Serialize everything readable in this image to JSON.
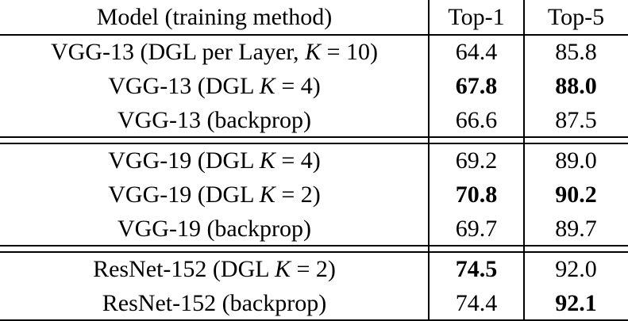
{
  "table": {
    "header": [
      "Model (training method)",
      "Top-1",
      "Top-5"
    ],
    "groups": [
      {
        "rows": [
          {
            "model": [
              "VGG-13 (DGL per Layer, ",
              "K",
              " = 10)"
            ],
            "top1": "64.4",
            "top5": "85.8",
            "bold": [
              false,
              false
            ]
          },
          {
            "model": [
              "VGG-13 (DGL ",
              "K",
              " = 4)"
            ],
            "top1": "67.8",
            "top5": "88.0",
            "bold": [
              true,
              true
            ]
          },
          {
            "model": [
              "VGG-13 (backprop)"
            ],
            "top1": "66.6",
            "top5": "87.5",
            "bold": [
              false,
              false
            ]
          }
        ]
      },
      {
        "rows": [
          {
            "model": [
              "VGG-19 (DGL ",
              "K",
              " = 4)"
            ],
            "top1": "69.2",
            "top5": "89.0",
            "bold": [
              false,
              false
            ]
          },
          {
            "model": [
              "VGG-19 (DGL ",
              "K",
              " = 2)"
            ],
            "top1": "70.8",
            "top5": "90.2",
            "bold": [
              true,
              true
            ]
          },
          {
            "model": [
              "VGG-19 (backprop)"
            ],
            "top1": "69.7",
            "top5": "89.7",
            "bold": [
              false,
              false
            ]
          }
        ]
      },
      {
        "rows": [
          {
            "model": [
              "ResNet-152 (DGL ",
              "K",
              " = 2)"
            ],
            "top1": "74.5",
            "top5": "92.0",
            "bold": [
              true,
              false
            ]
          },
          {
            "model": [
              "ResNet-152 (backprop)"
            ],
            "top1": "74.4",
            "top5": "92.1",
            "bold": [
              false,
              true
            ]
          }
        ]
      }
    ]
  }
}
